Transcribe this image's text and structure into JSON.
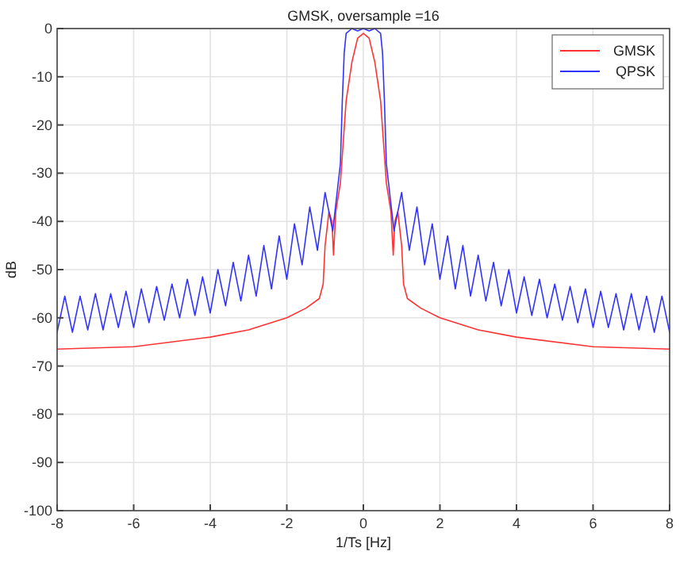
{
  "chart_data": {
    "type": "line",
    "title": "GMSK, oversample =16",
    "xlabel": "1/Ts [Hz]",
    "ylabel": "dB",
    "xlim": [
      -8,
      8
    ],
    "xticks": [
      -8,
      -6,
      -4,
      -2,
      0,
      2,
      4,
      6,
      8
    ],
    "ylim": [
      -100,
      0
    ],
    "yticks": [
      -100,
      -90,
      -80,
      -70,
      -60,
      -50,
      -40,
      -30,
      -20,
      -10,
      0
    ],
    "grid": true,
    "legend": "top right",
    "line_style": "solid",
    "marker": "none",
    "series": [
      {
        "name": "GMSK",
        "color": "#ff3333",
        "x": [
          -8,
          -6,
          -4,
          -3,
          -2,
          -1.5,
          -1.15,
          -1.05,
          -1,
          -0.9,
          -0.82,
          -0.78,
          -0.72,
          -0.6,
          -0.45,
          -0.3,
          -0.15,
          0,
          0.15,
          0.3,
          0.45,
          0.6,
          0.72,
          0.78,
          0.82,
          0.9,
          1,
          1.05,
          1.15,
          1.5,
          2,
          3,
          4,
          6,
          8
        ],
        "values": [
          -66.5,
          -66,
          -64,
          -62.5,
          -60,
          -58,
          -56,
          -53,
          -45,
          -38,
          -40,
          -47,
          -38,
          -32,
          -15,
          -7,
          -2,
          -1,
          -2,
          -7,
          -15,
          -32,
          -38,
          -47,
          -40,
          -38,
          -45,
          -53,
          -56,
          -58,
          -60,
          -62.5,
          -64,
          -66,
          -66.5
        ]
      },
      {
        "name": "QPSK",
        "color": "#3333ff",
        "x": [
          -8,
          -7.8,
          -7.6,
          -7.4,
          -7.2,
          -7,
          -6.8,
          -6.6,
          -6.4,
          -6.2,
          -6,
          -5.8,
          -5.6,
          -5.4,
          -5.2,
          -5,
          -4.8,
          -4.6,
          -4.4,
          -4.2,
          -4,
          -3.8,
          -3.6,
          -3.4,
          -3.2,
          -3,
          -2.8,
          -2.6,
          -2.4,
          -2.2,
          -2,
          -1.8,
          -1.6,
          -1.4,
          -1.2,
          -1,
          -0.8,
          -0.6,
          -0.55,
          -0.5,
          -0.45,
          -0.3,
          -0.15,
          0,
          0.15,
          0.3,
          0.45,
          0.5,
          0.55,
          0.6,
          0.8,
          1,
          1.2,
          1.4,
          1.6,
          1.8,
          2,
          2.2,
          2.4,
          2.6,
          2.8,
          3,
          3.2,
          3.4,
          3.6,
          3.8,
          4,
          4.2,
          4.4,
          4.6,
          4.8,
          5,
          5.2,
          5.4,
          5.6,
          5.8,
          6,
          6.2,
          6.4,
          6.6,
          6.8,
          7,
          7.2,
          7.4,
          7.6,
          7.8,
          8
        ],
        "values": [
          -63,
          -55.5,
          -63,
          -55.5,
          -62.5,
          -55,
          -62.5,
          -55,
          -62,
          -54.5,
          -62,
          -54,
          -61,
          -53.5,
          -60.5,
          -53,
          -60,
          -52,
          -59.5,
          -51.5,
          -59,
          -50,
          -57.5,
          -48.5,
          -56.5,
          -47,
          -55.5,
          -45,
          -54,
          -43,
          -52,
          -40.5,
          -49,
          -37,
          -46,
          -34,
          -42,
          -28,
          -15,
          -5,
          -1,
          0,
          -0.5,
          0,
          -0.5,
          0,
          -1,
          -5,
          -15,
          -28,
          -42,
          -34,
          -46,
          -37,
          -49,
          -40.5,
          -52,
          -43,
          -54,
          -45,
          -55.5,
          -47,
          -56.5,
          -48.5,
          -57.5,
          -50,
          -59,
          -51.5,
          -59.5,
          -52,
          -60,
          -53,
          -60.5,
          -53.5,
          -61,
          -54,
          -62,
          -54.5,
          -62,
          -55,
          -62.5,
          -55,
          -62.5,
          -55.5,
          -63,
          -55.5,
          -63
        ]
      }
    ]
  }
}
